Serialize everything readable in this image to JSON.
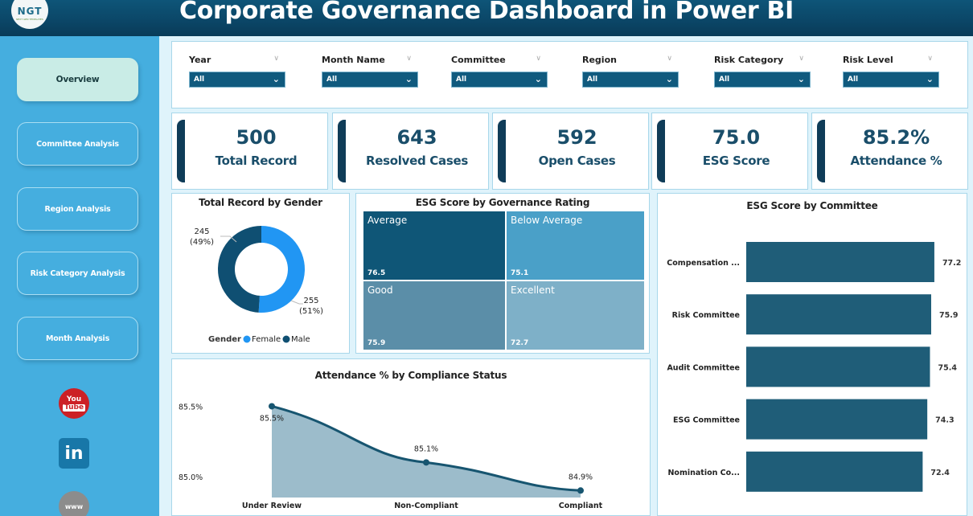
{
  "header": {
    "title": "Corporate Governance Dashboard in Power BI",
    "logo_text": "NGT",
    "logo_subtext": "NEXT GEN TEMPLATES"
  },
  "sidebar": {
    "items": [
      {
        "label": "Overview",
        "active": true
      },
      {
        "label": "Committee Analysis",
        "active": false
      },
      {
        "label": "Region Analysis",
        "active": false
      },
      {
        "label": "Risk Category Analysis",
        "active": false
      },
      {
        "label": "Month Analysis",
        "active": false
      }
    ],
    "social": [
      {
        "name": "youtube-icon",
        "line1": "You",
        "line2": "Tube"
      },
      {
        "name": "linkedin-icon",
        "text": "in"
      },
      {
        "name": "website-icon",
        "text": "www"
      }
    ]
  },
  "filters": [
    {
      "label": "Year",
      "value": "All"
    },
    {
      "label": "Month Name",
      "value": "All"
    },
    {
      "label": "Committee",
      "value": "All"
    },
    {
      "label": "Region",
      "value": "All"
    },
    {
      "label": "Risk Category",
      "value": "All"
    },
    {
      "label": "Risk Level",
      "value": "All"
    }
  ],
  "kpis": [
    {
      "value": "500",
      "label": "Total Record"
    },
    {
      "value": "643",
      "label": "Resolved Cases"
    },
    {
      "value": "592",
      "label": "Open Cases"
    },
    {
      "value": "75.0",
      "label": "ESG Score"
    },
    {
      "value": "85.2%",
      "label": "Attendance %"
    }
  ],
  "colors": {
    "primary": "#0f3c58",
    "female": "#2196f3",
    "male": "#0f4f72",
    "bar": "#1f5d78",
    "area": "#9cbccb",
    "line": "#175570"
  },
  "chart_data": [
    {
      "type": "pie",
      "title": "Total Record by Gender",
      "legend_title": "Gender",
      "legend_position": "bottom",
      "slices": [
        {
          "label": "Female",
          "value": 255,
          "percent": "51%",
          "color": "#2196f3"
        },
        {
          "label": "Male",
          "value": 245,
          "percent": "49%",
          "color": "#0f4f72"
        }
      ]
    },
    {
      "type": "heatmap",
      "subtype": "treemap",
      "title": "ESG Score by Governance Rating",
      "cells": [
        {
          "label": "Average",
          "value": "76.5",
          "color": "#0f5677"
        },
        {
          "label": "Below Average",
          "value": "75.1",
          "color": "#4aa0c8"
        },
        {
          "label": "Good",
          "value": "75.9",
          "color": "#5b8ea8"
        },
        {
          "label": "Excellent",
          "value": "72.7",
          "color": "#7eb0c8"
        }
      ]
    },
    {
      "type": "bar",
      "orientation": "horizontal",
      "title": "ESG Score by Committee",
      "categories": [
        "Compensation ...",
        "Risk Committee",
        "Audit Committee",
        "ESG Committee",
        "Nomination Co..."
      ],
      "values": [
        77.2,
        75.9,
        75.4,
        74.3,
        72.4
      ],
      "value_labels": [
        "77.2",
        "75.9",
        "75.4",
        "74.3",
        "72.4"
      ],
      "xlim": [
        0,
        80
      ]
    },
    {
      "type": "area",
      "title": "Attendance % by Compliance Status",
      "categories": [
        "Under Review",
        "Non-Compliant",
        "Compliant"
      ],
      "values": [
        85.5,
        85.1,
        84.9
      ],
      "value_labels": [
        "85.5%",
        "85.1%",
        "84.9%"
      ],
      "yticks": [
        "85.5%",
        "85.0%"
      ],
      "ytick_values": [
        85.5,
        85.0
      ],
      "ylim": [
        84.85,
        85.6
      ]
    }
  ]
}
